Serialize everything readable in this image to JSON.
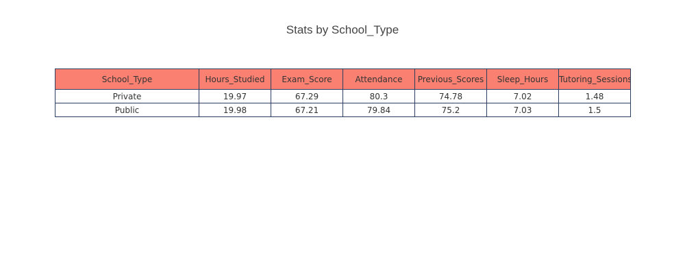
{
  "chart_data": {
    "type": "table",
    "title": "Stats by School_Type",
    "columns": [
      "School_Type",
      "Hours_Studied",
      "Exam_Score",
      "Attendance",
      "Previous_Scores",
      "Sleep_Hours",
      "Tutoring_Sessions"
    ],
    "rows": [
      [
        "Private",
        "19.97",
        "67.29",
        "80.3",
        "74.78",
        "7.02",
        "1.48"
      ],
      [
        "Public",
        "19.98",
        "67.21",
        "79.84",
        "75.2",
        "7.03",
        "1.5"
      ]
    ],
    "header_color": "#fa8072",
    "cell_color": "#ffffff",
    "line_color": "#2a3f5f"
  }
}
